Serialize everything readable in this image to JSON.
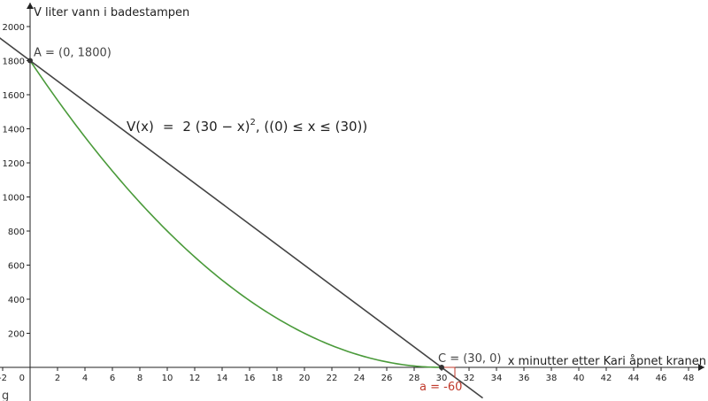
{
  "chart_data": {
    "type": "line",
    "xlabel": "x minutter etter Kari åpnet kranen",
    "ylabel": "V liter vann i badestampen",
    "xlim": [
      -2.5,
      48.5
    ],
    "ylim": [
      -200,
      2080
    ],
    "x_ticks": [
      -2,
      2,
      4,
      6,
      8,
      10,
      12,
      14,
      16,
      18,
      20,
      22,
      24,
      26,
      28,
      30,
      32,
      34,
      36,
      38,
      40,
      42,
      44,
      46,
      48
    ],
    "y_ticks": [
      200,
      400,
      600,
      800,
      1000,
      1200,
      1400,
      1600,
      1800,
      2000
    ],
    "origin_label": "0",
    "grid": false,
    "series": [
      {
        "name": "V",
        "kind": "function",
        "formula_text": "V(x) = 2 (30 − x)², ((0) ≤ x ≤ (30))",
        "domain": [
          0,
          30
        ],
        "color": "#4a9a3a"
      },
      {
        "name": "g",
        "kind": "tangent-line",
        "x": [
          -2.5,
          33
        ],
        "y": [
          1950,
          -180
        ],
        "color": "#444444"
      }
    ],
    "points": [
      {
        "name": "A",
        "x": 0,
        "y": 1800,
        "label": "A = (0, 1800)"
      },
      {
        "name": "C",
        "x": 30,
        "y": 0,
        "label": "C = (30, 0)"
      }
    ],
    "annotations": {
      "formula": {
        "lhs": "V(x)",
        "eq": "=",
        "rhs_base": "2 (30 − x)",
        "rhs_exp": "2",
        "domain": ",    ((0) ≤ x ≤ (30))"
      },
      "slope_label": "a = -60",
      "slope_value": -60,
      "line_name": "g"
    },
    "colors": {
      "curve": "#4a9a3a",
      "line": "#444444",
      "slope": "#c0392b",
      "axis": "#222222"
    }
  }
}
